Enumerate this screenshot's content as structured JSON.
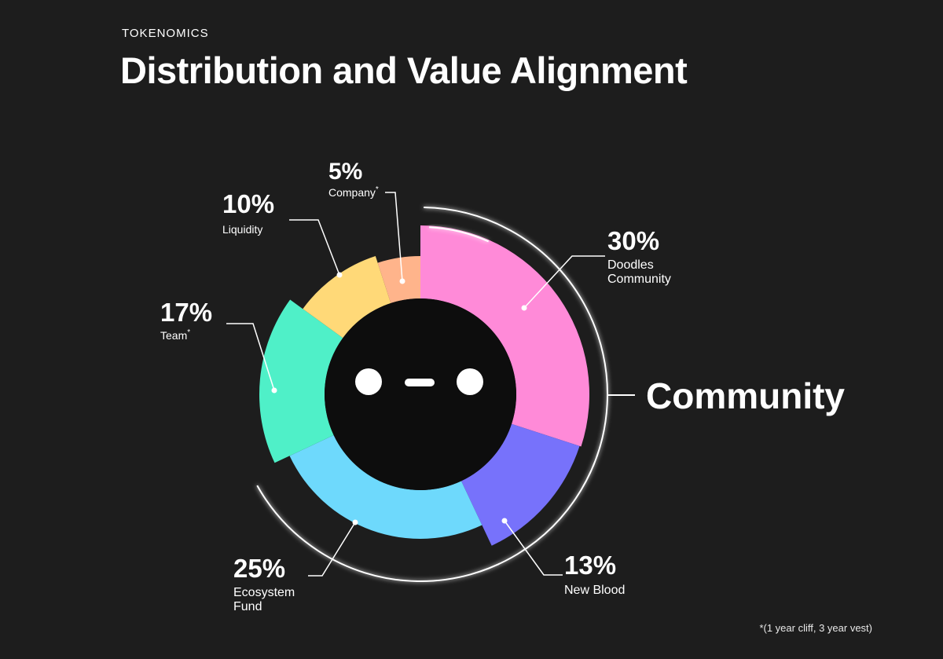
{
  "header": {
    "eyebrow": "TOKENOMICS",
    "title": "Distribution and Value Alignment"
  },
  "footnote": "*(1 year cliff, 3 year vest)",
  "chart_data": {
    "type": "pie",
    "variant": "donut",
    "title": "Distribution and Value Alignment",
    "unit": "%",
    "start_angle_deg": 0,
    "direction": "clockwise",
    "slices": [
      {
        "label": "30%",
        "name_lines": [
          "Doodles",
          "Community"
        ],
        "asterisk": "",
        "value": 30,
        "color": "#ff8ad8"
      },
      {
        "label": "13%",
        "name_lines": [
          "New Blood"
        ],
        "asterisk": "",
        "value": 13,
        "color": "#7772fb"
      },
      {
        "label": "25%",
        "name_lines": [
          "Ecosystem",
          "Fund"
        ],
        "asterisk": "",
        "value": 25,
        "color": "#6ed9fc"
      },
      {
        "label": "17%",
        "name_lines": [
          "Team"
        ],
        "asterisk": "*",
        "value": 17,
        "color": "#4ff0c8"
      },
      {
        "label": "10%",
        "name_lines": [
          "Liquidity"
        ],
        "asterisk": "",
        "value": 10,
        "color": "#ffd978"
      },
      {
        "label": "5%",
        "name_lines": [
          "Company"
        ],
        "asterisk": "*",
        "value": 5,
        "color": "#ffb48b"
      }
    ],
    "groups": [
      {
        "label": "Community",
        "spans": [
          "30%",
          "13%",
          "25%"
        ]
      }
    ],
    "center": {
      "style": "face",
      "color": "#0d0d0d"
    },
    "legend": "none"
  }
}
